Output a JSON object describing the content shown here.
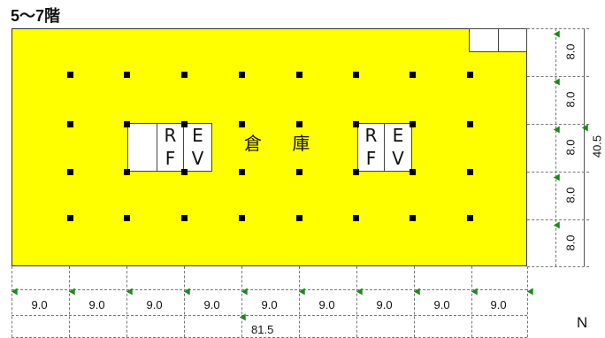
{
  "title": "5～7階",
  "room_label": "倉 庫",
  "ev_left": {
    "r": "R",
    "f": "F",
    "e": "E",
    "v": "V"
  },
  "ev_right": {
    "r": "R",
    "f": "F",
    "e": "E",
    "v": "V"
  },
  "spans_x": [
    "9.0",
    "9.0",
    "9.0",
    "9.0",
    "9.0",
    "9.0",
    "9.0",
    "9.0",
    "9.0"
  ],
  "total_x": "81.5",
  "spans_y": [
    "8.0",
    "8.0",
    "8.0",
    "8.0",
    "8.0"
  ],
  "total_y": "40.5",
  "north": "N",
  "colors": {
    "floor": "#ffff00",
    "marker": "#1a8a1a"
  }
}
